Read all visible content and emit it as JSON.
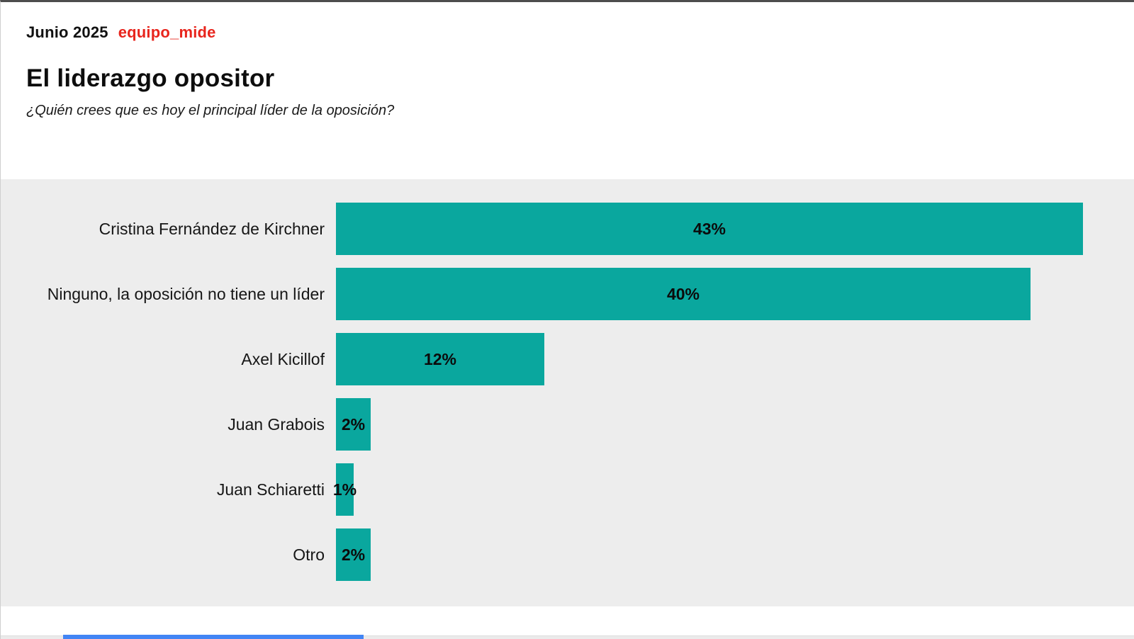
{
  "header": {
    "date_label": "Junio 2025",
    "brand": "equipo_mide",
    "brand_color": "#e8251d",
    "title": "El liderazgo opositor",
    "subtitle": "¿Quién crees que es hoy el principal líder de la oposición?"
  },
  "chart_data": {
    "type": "bar",
    "orientation": "horizontal",
    "title": "El liderazgo opositor",
    "question": "¿Quién crees que es hoy el principal líder de la oposición?",
    "categories": [
      "Cristina Fernández de Kirchner",
      "Ninguno, la oposición no tiene un líder",
      "Axel Kicillof",
      "Juan Grabois",
      "Juan Schiaretti",
      "Otro"
    ],
    "values": [
      43,
      40,
      12,
      2,
      1,
      2
    ],
    "value_labels": [
      "43%",
      "40%",
      "12%",
      "2%",
      "1%",
      "2%"
    ],
    "unit": "percent",
    "xlim": [
      0,
      45
    ],
    "grid": false,
    "legend": false,
    "bar_color": "#0aa79e",
    "plot_background": "#ededed",
    "value_label_position": "center-inside"
  },
  "footer": {
    "strip_color": "#ebebeb",
    "progress_color": "#4285f4"
  }
}
